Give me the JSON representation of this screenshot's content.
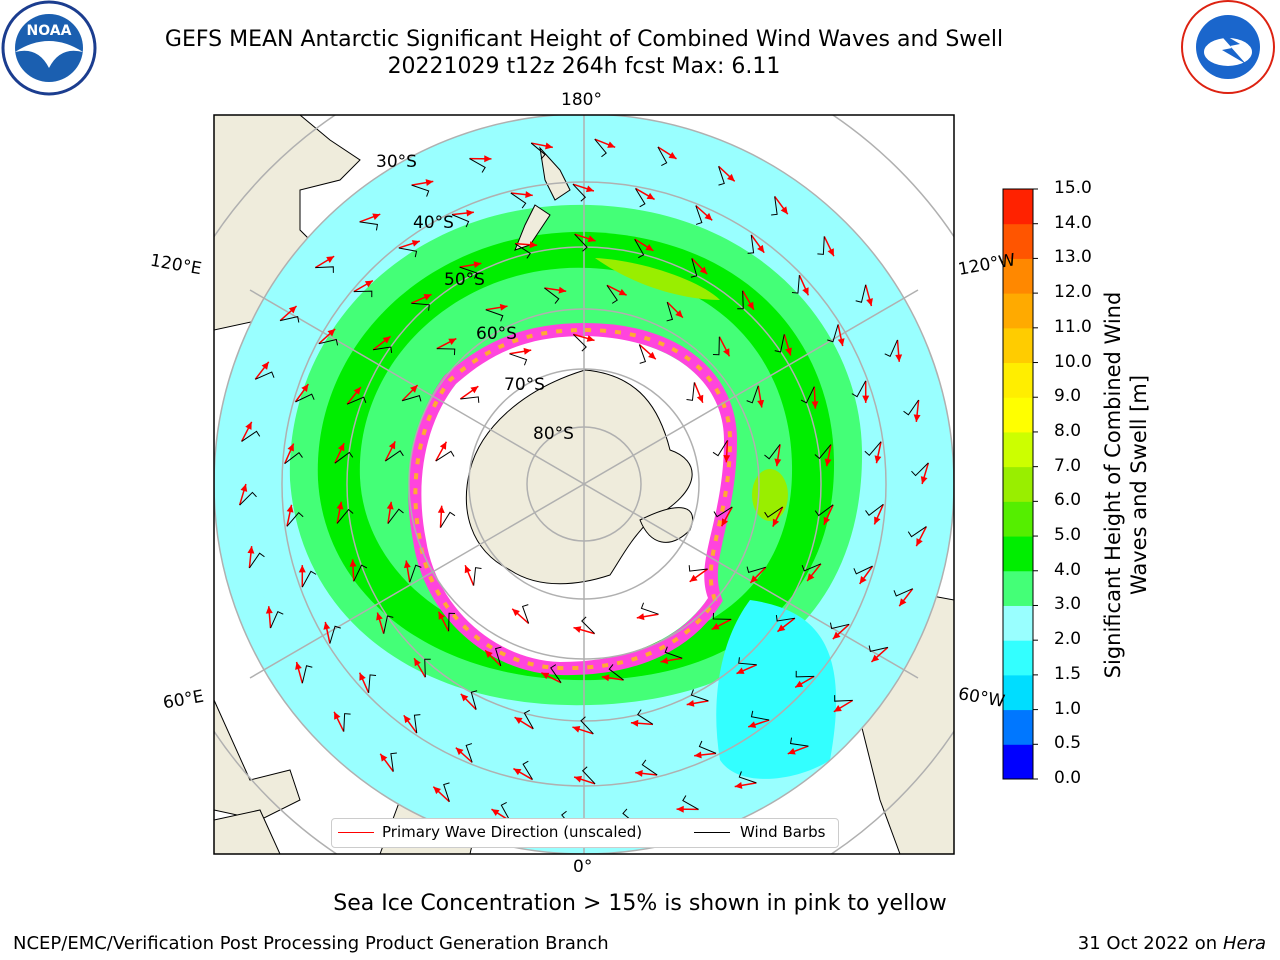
{
  "title": {
    "line1": "GEFS MEAN Antarctic Significant Height of Combined Wind Waves and Swell",
    "line2": "20221029 t12z 264h fcst   Max: 6.11"
  },
  "logos": {
    "left": {
      "icon": "noaa-logo",
      "text": "NOAA"
    },
    "right": {
      "icon": "nws-logo",
      "text": "NATIONAL WEATHER SERVICE"
    }
  },
  "map": {
    "projection": "south-polar-stereographic",
    "longitude_labels": [
      "180°",
      "120°E",
      "120°W",
      "60°E",
      "60°W",
      "0°"
    ],
    "latitude_labels": [
      "30°S",
      "40°S",
      "50°S",
      "60°S",
      "70°S",
      "80°S"
    ],
    "colors": {
      "land": "#efecdc",
      "ice": "#ff44dd",
      "grid": "#b0b0b0"
    }
  },
  "legend": {
    "wave_label": "Primary Wave Direction (unscaled)",
    "wind_label": "Wind Barbs",
    "wave_color": "#ff0000",
    "wind_color": "#000000"
  },
  "colorbar": {
    "title": "Significant Height of Combined Wind Waves and Swell [m]",
    "ticks": [
      "0.0",
      "0.5",
      "1.0",
      "1.5",
      "2.0",
      "3.0",
      "4.0",
      "5.0",
      "6.0",
      "7.0",
      "8.0",
      "9.0",
      "10.0",
      "11.0",
      "12.0",
      "13.0",
      "14.0",
      "15.0"
    ],
    "colors": [
      "#0000ff",
      "#0077ff",
      "#00ddff",
      "#33ffff",
      "#99ffff",
      "#44ff77",
      "#00ee00",
      "#55ee00",
      "#99ee00",
      "#ccff00",
      "#ffff00",
      "#ffee00",
      "#ffcc00",
      "#ffaa00",
      "#ff8800",
      "#ff5500",
      "#ff2200"
    ]
  },
  "caption": "Sea Ice Concentration > 15% is shown in pink to yellow",
  "credit": "NCEP/EMC/Verification Post Processing Product Generation Branch",
  "date": {
    "text": "31 Oct 2022 on ",
    "machine": "Hera"
  }
}
